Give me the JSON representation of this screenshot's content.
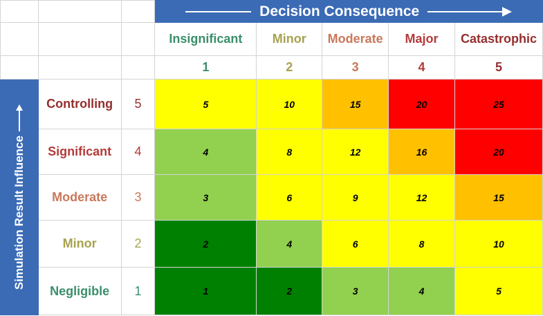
{
  "header": {
    "title": "Decision Consequence",
    "title_color": "#3b6bb5"
  },
  "columns": [
    {
      "label": "Insignificant",
      "number": "1",
      "color": "#3a8f6b"
    },
    {
      "label": "Minor",
      "number": "2",
      "color": "#a6a24f"
    },
    {
      "label": "Moderate",
      "number": "3",
      "color": "#c9785a"
    },
    {
      "label": "Major",
      "number": "4",
      "color": "#b53a3a"
    },
    {
      "label": "Catastrophic",
      "number": "5",
      "color": "#962e2e"
    }
  ],
  "side": {
    "title": "Simulation Result Influence"
  },
  "rows": [
    {
      "label": "Controlling",
      "number": "5",
      "color": "#962e2e",
      "cells": [
        {
          "value": "5",
          "fill": "#ffff00"
        },
        {
          "value": "10",
          "fill": "#ffff00"
        },
        {
          "value": "15",
          "fill": "#ffc000"
        },
        {
          "value": "20",
          "fill": "#ff0000"
        },
        {
          "value": "25",
          "fill": "#ff0000"
        }
      ]
    },
    {
      "label": "Significant",
      "number": "4",
      "color": "#b53a3a",
      "cells": [
        {
          "value": "4",
          "fill": "#92d050"
        },
        {
          "value": "8",
          "fill": "#ffff00"
        },
        {
          "value": "12",
          "fill": "#ffff00"
        },
        {
          "value": "16",
          "fill": "#ffc000"
        },
        {
          "value": "20",
          "fill": "#ff0000"
        }
      ]
    },
    {
      "label": "Moderate",
      "number": "3",
      "color": "#c9785a",
      "cells": [
        {
          "value": "3",
          "fill": "#92d050"
        },
        {
          "value": "6",
          "fill": "#ffff00"
        },
        {
          "value": "9",
          "fill": "#ffff00"
        },
        {
          "value": "12",
          "fill": "#ffff00"
        },
        {
          "value": "15",
          "fill": "#ffc000"
        }
      ]
    },
    {
      "label": "Minor",
      "number": "2",
      "color": "#a6a24f",
      "cells": [
        {
          "value": "2",
          "fill": "#008000"
        },
        {
          "value": "4",
          "fill": "#92d050"
        },
        {
          "value": "6",
          "fill": "#ffff00"
        },
        {
          "value": "8",
          "fill": "#ffff00"
        },
        {
          "value": "10",
          "fill": "#ffff00"
        }
      ]
    },
    {
      "label": "Negligible",
      "number": "1",
      "color": "#3a8f6b",
      "cells": [
        {
          "value": "1",
          "fill": "#008000"
        },
        {
          "value": "2",
          "fill": "#008000"
        },
        {
          "value": "3",
          "fill": "#92d050"
        },
        {
          "value": "4",
          "fill": "#92d050"
        },
        {
          "value": "5",
          "fill": "#ffff00"
        }
      ]
    }
  ]
}
